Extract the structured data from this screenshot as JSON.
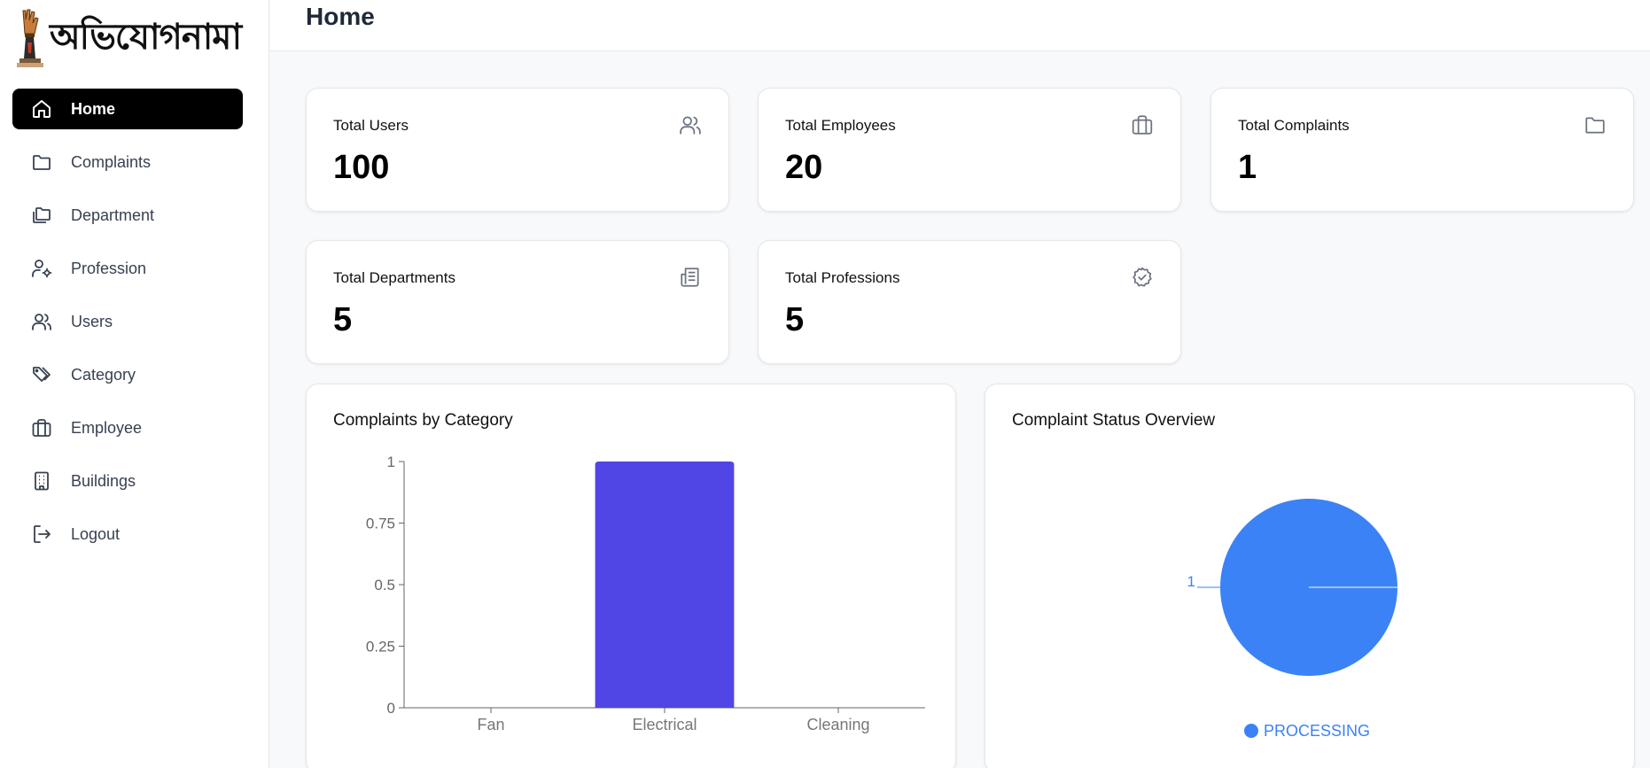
{
  "brand": {
    "logo_text": "অভিযোগনামা"
  },
  "page": {
    "title": "Home"
  },
  "sidebar": {
    "items": [
      {
        "label": "Home",
        "icon": "home-icon",
        "active": true
      },
      {
        "label": "Complaints",
        "icon": "folder-icon"
      },
      {
        "label": "Department",
        "icon": "folders-icon"
      },
      {
        "label": "Profession",
        "icon": "user-cog-icon"
      },
      {
        "label": "Users",
        "icon": "users-icon"
      },
      {
        "label": "Category",
        "icon": "tags-icon"
      },
      {
        "label": "Employee",
        "icon": "briefcase-icon"
      },
      {
        "label": "Buildings",
        "icon": "building-icon"
      },
      {
        "label": "Logout",
        "icon": "logout-icon"
      }
    ]
  },
  "stats": [
    {
      "label": "Total Users",
      "value": "100",
      "icon": "users-icon"
    },
    {
      "label": "Total Employees",
      "value": "20",
      "icon": "briefcase-icon"
    },
    {
      "label": "Total Complaints",
      "value": "1",
      "icon": "folder-icon"
    },
    {
      "label": "Total Departments",
      "value": "5",
      "icon": "newspaper-icon"
    },
    {
      "label": "Total Professions",
      "value": "5",
      "icon": "badge-check-icon"
    }
  ],
  "colors": {
    "bar": "#4f46e5",
    "pie": "#3b82f6",
    "active_nav": "#000000"
  },
  "chart_data": [
    {
      "type": "bar",
      "title": "Complaints by Category",
      "categories": [
        "Fan",
        "Electrical",
        "Cleaning"
      ],
      "values": [
        0,
        1,
        0
      ],
      "ylim": [
        0,
        1
      ],
      "yticks": [
        "0",
        "0.25",
        "0.5",
        "0.75",
        "1"
      ],
      "grid": false,
      "xlabel": "",
      "ylabel": ""
    },
    {
      "type": "pie",
      "title": "Complaint Status Overview",
      "slices": [
        {
          "name": "PROCESSING",
          "value": 1,
          "label": "1"
        }
      ],
      "legend": "bottom"
    }
  ]
}
